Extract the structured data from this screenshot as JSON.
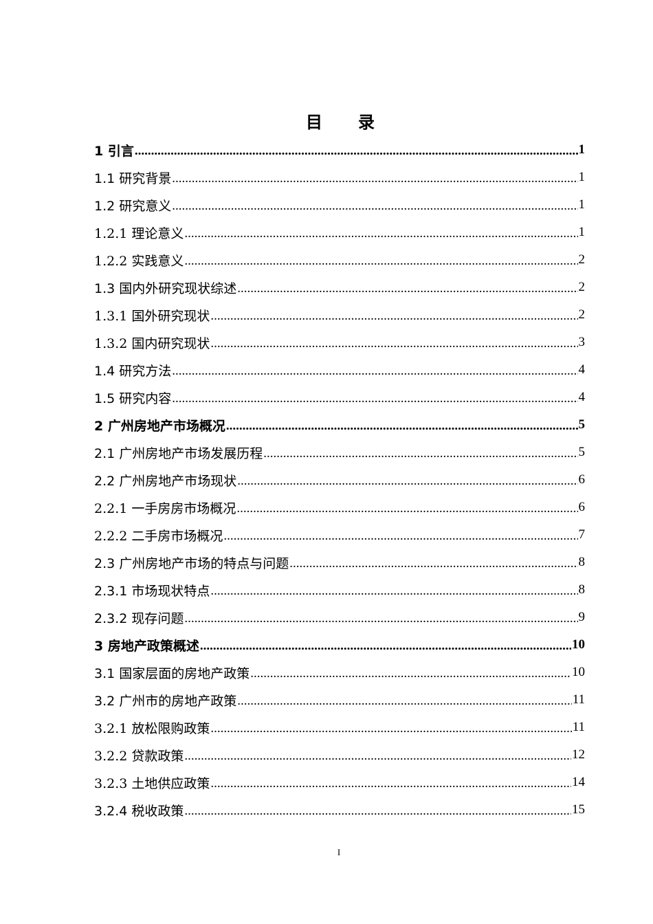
{
  "title": [
    "目",
    "录"
  ],
  "toc": [
    {
      "label": "1 引言",
      "page": "1",
      "level": 1
    },
    {
      "label": "1.1 研究背景",
      "page": "1",
      "level": 2
    },
    {
      "label": "1.2 研究意义",
      "page": "1",
      "level": 2
    },
    {
      "label": "1.2.1 理论意义",
      "page": "1",
      "level": 3
    },
    {
      "label": "1.2.2 实践意义",
      "page": "2",
      "level": 3
    },
    {
      "label": "1.3 国内外研究现状综述",
      "page": "2",
      "level": 2
    },
    {
      "label": "1.3.1 国外研究现状",
      "page": "2",
      "level": 3
    },
    {
      "label": "1.3.2 国内研究现状",
      "page": "3",
      "level": 3
    },
    {
      "label": "1.4 研究方法",
      "page": "4",
      "level": 2
    },
    {
      "label": "1.5 研究内容",
      "page": "4",
      "level": 2
    },
    {
      "label": "2 广州房地产市场概况",
      "page": "5",
      "level": 1
    },
    {
      "label": "2.1 广州房地产市场发展历程",
      "page": "5",
      "level": 2
    },
    {
      "label": "2.2 广州房地产市场现状",
      "page": "6",
      "level": 2
    },
    {
      "label": "2.2.1 一手房房市场概况",
      "page": "6",
      "level": 3
    },
    {
      "label": "2.2.2 二手房市场概况",
      "page": "7",
      "level": 3
    },
    {
      "label": "2.3 广州房地产市场的特点与问题",
      "page": "8",
      "level": 2
    },
    {
      "label": "2.3.1 市场现状特点",
      "page": "8",
      "level": 2
    },
    {
      "label": "2.3.2 现存问题",
      "page": "9",
      "level": 2
    },
    {
      "label": "3 房地产政策概述",
      "page": "10",
      "level": 1
    },
    {
      "label": "3.1 国家层面的房地产政策",
      "page": "10",
      "level": 2
    },
    {
      "label": "3.2 广州市的房地产政策",
      "page": "11",
      "level": 2
    },
    {
      "label": "3.2.1 放松限购政策",
      "page": "11",
      "level": 3
    },
    {
      "label": "3.2.2 贷款政策",
      "page": "12",
      "level": 3
    },
    {
      "label": "3.2.3 土地供应政策",
      "page": "14",
      "level": 3
    },
    {
      "label": "3.2.4 税收政策",
      "page": "15",
      "level": 2
    }
  ],
  "footer": {
    "page_number": "I"
  }
}
